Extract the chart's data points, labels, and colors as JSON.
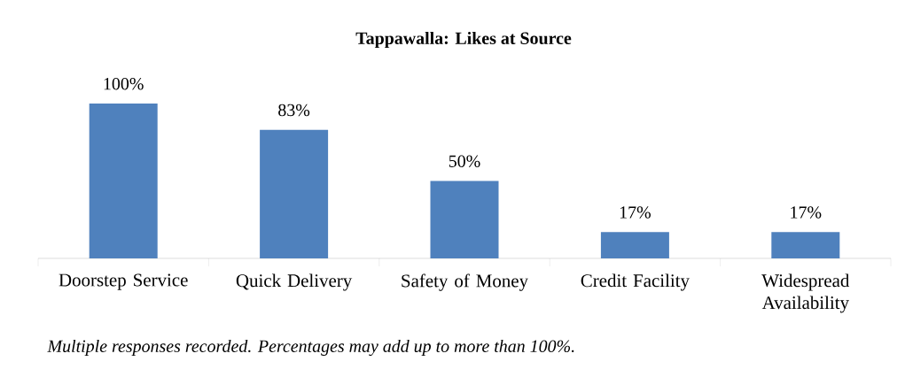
{
  "chart_data": {
    "type": "bar",
    "title": "Tappawalla: Likes at Source",
    "categories": [
      "Doorstep Service",
      "Quick Delivery",
      "Safety of Money",
      "Credit Facility",
      "Widespread Availability"
    ],
    "values": [
      100,
      83,
      50,
      17,
      17
    ],
    "color": "#4f81bd",
    "value_labels": [
      "100%",
      "83%",
      "50%",
      "17%",
      "17%"
    ],
    "annotations": [
      "Multiple responses recorded.  Percentages may add up to more than 100%."
    ]
  }
}
